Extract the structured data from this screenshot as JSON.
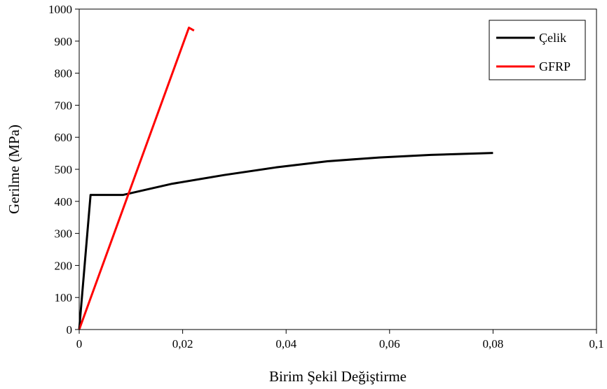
{
  "chart_data": {
    "type": "line",
    "title": "",
    "xlabel": "Birim Şekil Değiştirme",
    "ylabel": "Gerilme (MPa)",
    "xlim": [
      0,
      0.1
    ],
    "ylim": [
      0,
      1000
    ],
    "xticks": [
      0,
      0.02,
      0.04,
      0.06,
      0.08,
      0.1
    ],
    "xtick_labels": [
      "0",
      "0,02",
      "0,04",
      "0,06",
      "0,08",
      "0,1"
    ],
    "yticks": [
      0,
      100,
      200,
      300,
      400,
      500,
      600,
      700,
      800,
      900,
      1000
    ],
    "ytick_labels": [
      "0",
      "100",
      "200",
      "300",
      "400",
      "500",
      "600",
      "700",
      "800",
      "900",
      "1000"
    ],
    "grid": false,
    "legend_position": "top-right",
    "series": [
      {
        "name": "Çelik",
        "color": "#000000",
        "x": [
          0,
          0.0022,
          0.0085,
          0.018,
          0.028,
          0.038,
          0.048,
          0.058,
          0.068,
          0.08
        ],
        "y": [
          0,
          420,
          420,
          455,
          482,
          506,
          525,
          537,
          545,
          551
        ]
      },
      {
        "name": "GFRP",
        "color": "#ff0000",
        "x": [
          0,
          0.0212,
          0.0222
        ],
        "y": [
          0,
          942,
          933
        ]
      }
    ]
  }
}
